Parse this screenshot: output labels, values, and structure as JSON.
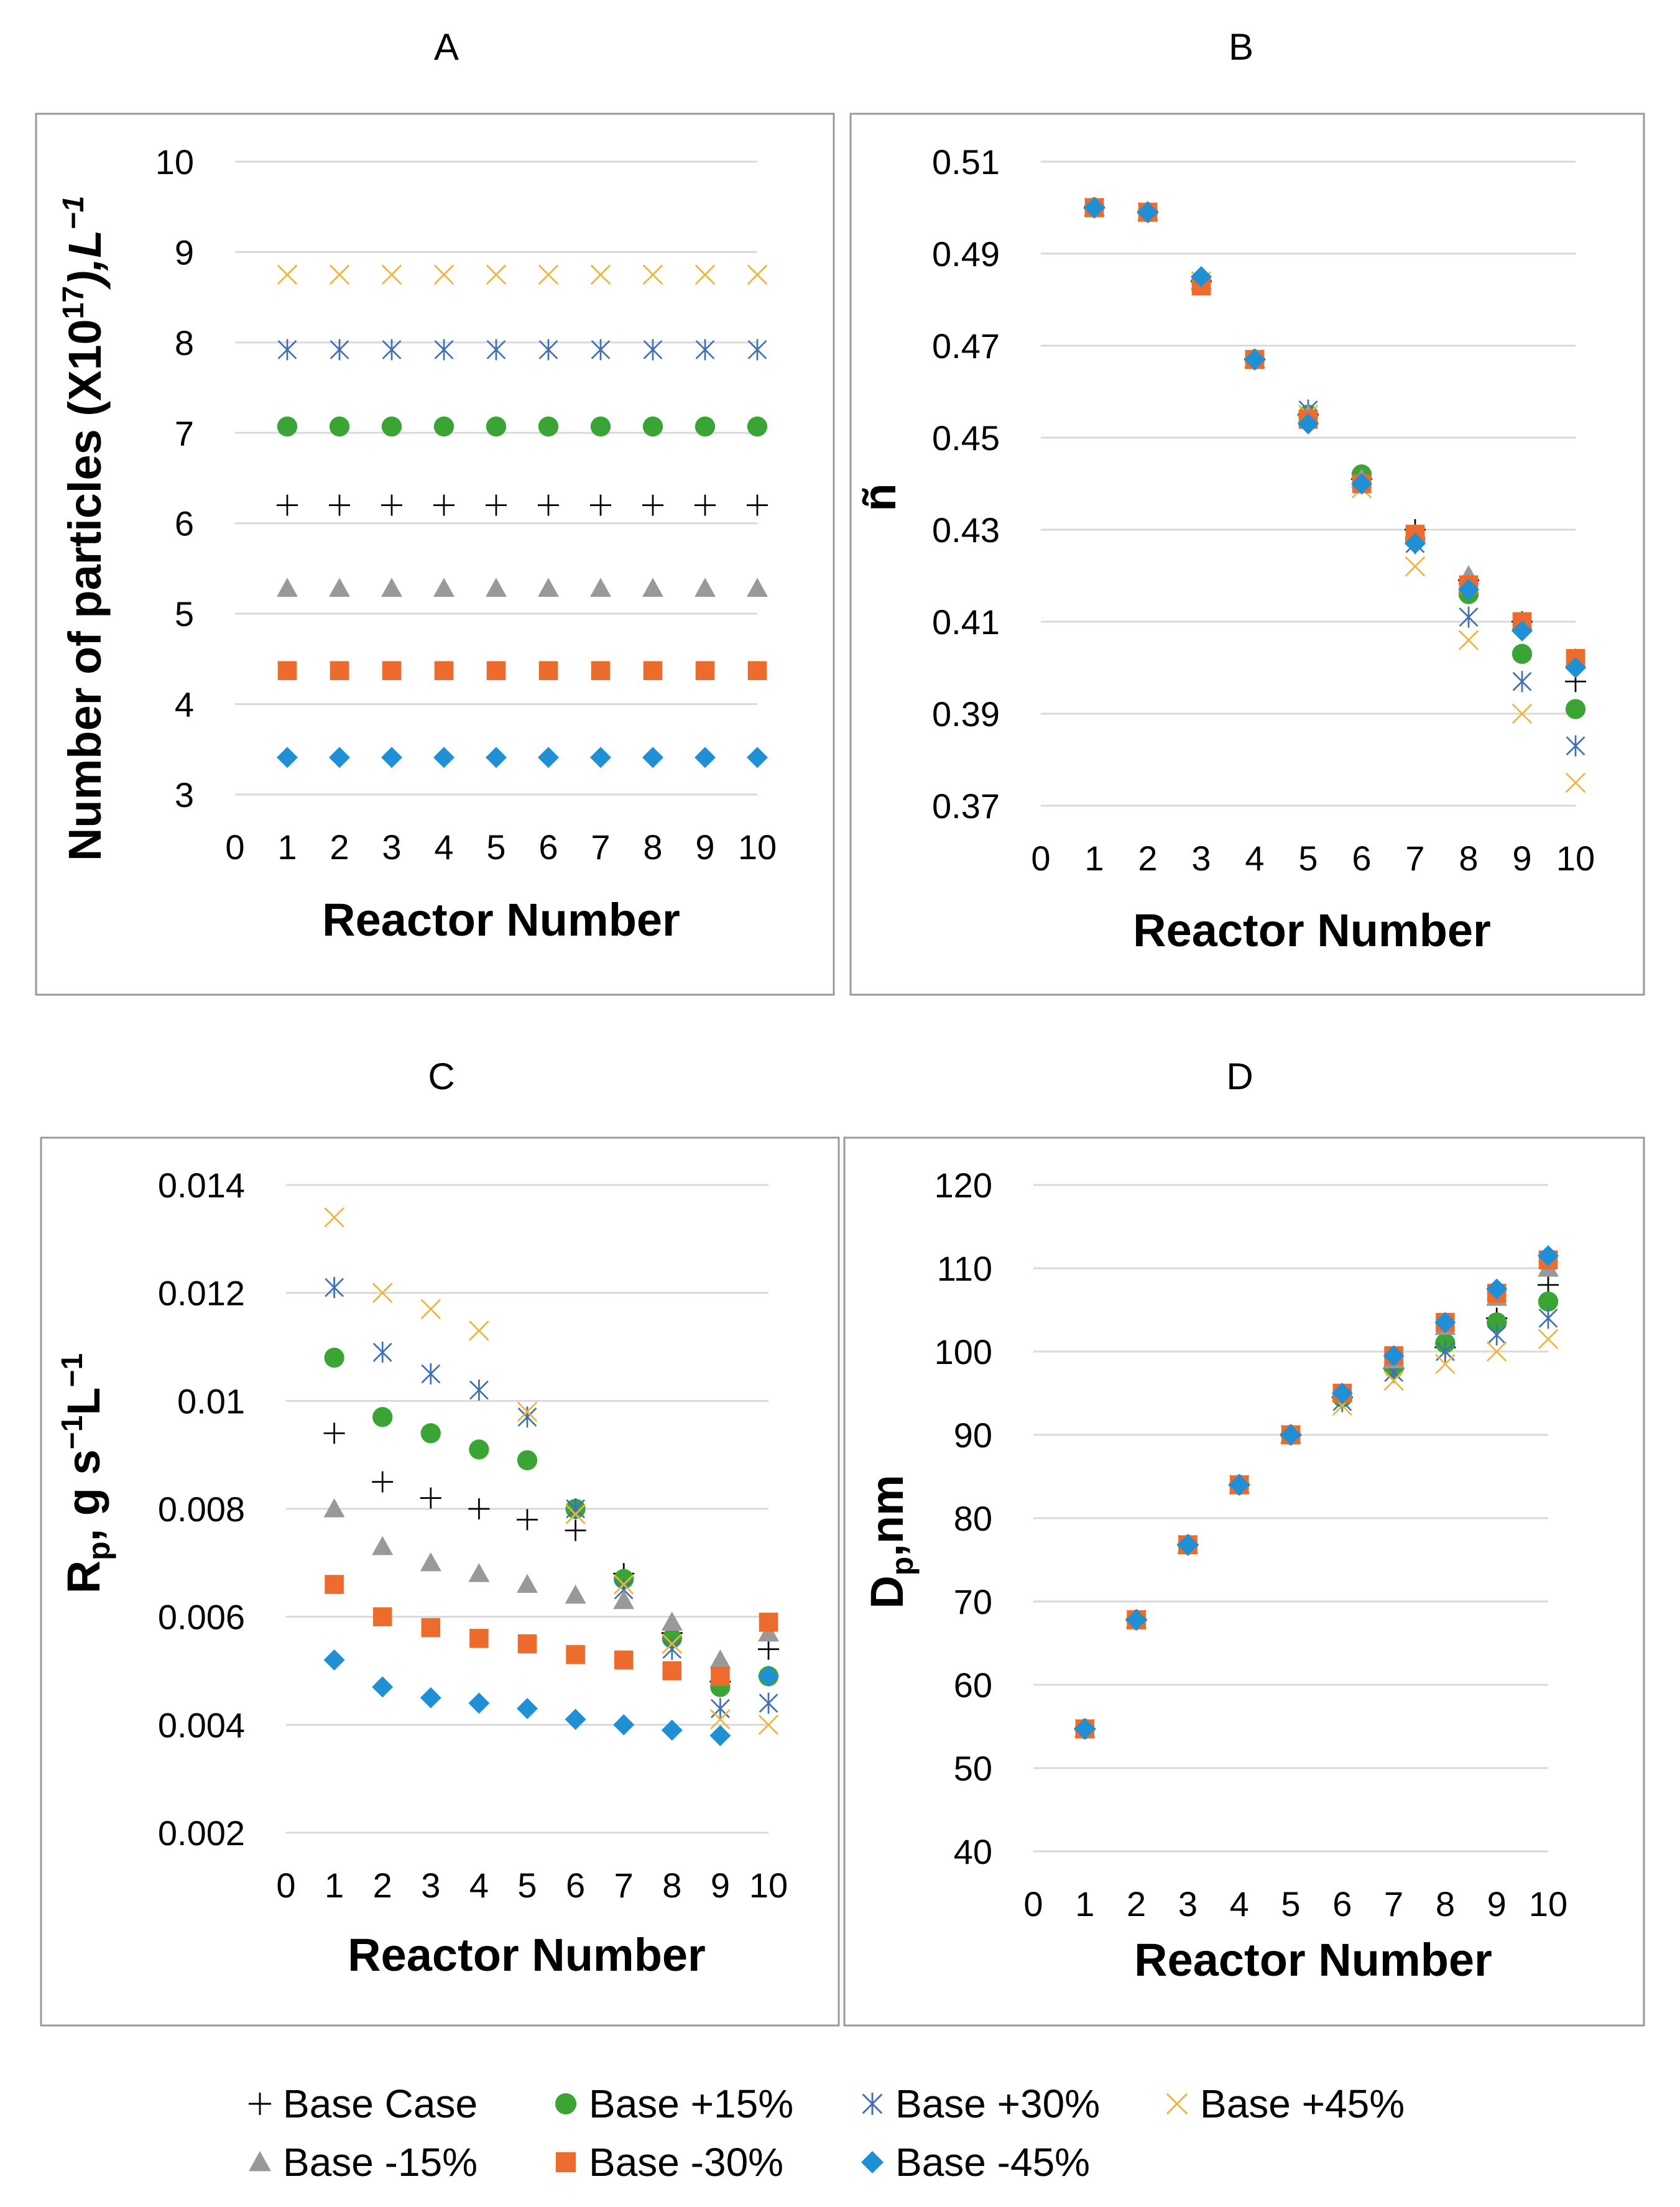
{
  "series_style": [
    {
      "key": "base",
      "marker": "plus",
      "color": "#000000"
    },
    {
      "key": "p15",
      "marker": "circle",
      "color": "#3aa535"
    },
    {
      "key": "p30",
      "marker": "asterisk",
      "color": "#3f6fb5"
    },
    {
      "key": "p45",
      "marker": "x",
      "color": "#f2b33d"
    },
    {
      "key": "m15",
      "marker": "triangle",
      "color": "#999999"
    },
    {
      "key": "m30",
      "marker": "square",
      "color": "#ed6b2d"
    },
    {
      "key": "m45",
      "marker": "diamond",
      "color": "#1f8fd6"
    }
  ],
  "legend": {
    "items": [
      "Base Case",
      "Base +15%",
      "Base +30%",
      "Base +45%",
      "Base -15%",
      "Base -30%",
      "Base -45%"
    ]
  },
  "chart_data": [
    {
      "panel": "A",
      "type": "scatter",
      "title": "A",
      "xlabel": "Reactor Number",
      "ylabel": "Number of particles (X10",
      "ylabel_sup": "17",
      "ylabel_end": "),L",
      "ylabel_end_sup": "−1",
      "xlim": [
        0,
        10
      ],
      "ylim": [
        3,
        10
      ],
      "xticks": [
        "0",
        "1",
        "2",
        "3",
        "4",
        "5",
        "6",
        "7",
        "8",
        "9",
        "10"
      ],
      "yticks": [
        "3",
        "4",
        "5",
        "6",
        "7",
        "8",
        "9",
        "10"
      ],
      "grid": true,
      "x": [
        1,
        2,
        3,
        4,
        5,
        6,
        7,
        8,
        9,
        10
      ],
      "series": [
        {
          "name": "Base Case",
          "values": [
            6.2,
            6.2,
            6.2,
            6.2,
            6.2,
            6.2,
            6.2,
            6.2,
            6.2,
            6.2
          ]
        },
        {
          "name": "Base +15%",
          "values": [
            7.07,
            7.07,
            7.07,
            7.07,
            7.07,
            7.07,
            7.07,
            7.07,
            7.07,
            7.07
          ]
        },
        {
          "name": "Base +30%",
          "values": [
            7.92,
            7.92,
            7.92,
            7.92,
            7.92,
            7.92,
            7.92,
            7.92,
            7.92,
            7.92
          ]
        },
        {
          "name": "Base +45%",
          "values": [
            8.75,
            8.75,
            8.75,
            8.75,
            8.75,
            8.75,
            8.75,
            8.75,
            8.75,
            8.75
          ]
        },
        {
          "name": "Base -15%",
          "values": [
            5.28,
            5.28,
            5.28,
            5.28,
            5.28,
            5.28,
            5.28,
            5.28,
            5.28,
            5.28
          ]
        },
        {
          "name": "Base -30%",
          "values": [
            4.37,
            4.37,
            4.37,
            4.37,
            4.37,
            4.37,
            4.37,
            4.37,
            4.37,
            4.37
          ]
        },
        {
          "name": "Base -45%",
          "values": [
            3.41,
            3.41,
            3.41,
            3.41,
            3.41,
            3.41,
            3.41,
            3.41,
            3.41,
            3.41
          ]
        }
      ]
    },
    {
      "panel": "B",
      "type": "scatter",
      "title": "B",
      "xlabel": "Reactor Number",
      "ylabel": "ñ",
      "xlim": [
        0,
        10
      ],
      "ylim": [
        0.37,
        0.51
      ],
      "xticks": [
        "0",
        "1",
        "2",
        "3",
        "4",
        "5",
        "6",
        "7",
        "8",
        "9",
        "10"
      ],
      "yticks": [
        "0.37",
        "0.39",
        "0.41",
        "0.43",
        "0.45",
        "0.47",
        "0.49",
        "0.51"
      ],
      "grid": true,
      "x": [
        1,
        2,
        3,
        4,
        5,
        6,
        7,
        8,
        9,
        10
      ],
      "series": [
        {
          "name": "Base Case",
          "values": [
            0.5,
            0.499,
            0.484,
            0.467,
            0.455,
            0.441,
            0.43,
            0.419,
            0.41,
            0.397
          ]
        },
        {
          "name": "Base +15%",
          "values": [
            0.5,
            0.499,
            0.484,
            0.467,
            0.455,
            0.442,
            0.428,
            0.416,
            0.403,
            0.391
          ]
        },
        {
          "name": "Base +30%",
          "values": [
            0.5,
            0.499,
            0.484,
            0.467,
            0.456,
            0.44,
            0.427,
            0.411,
            0.397,
            0.383
          ]
        },
        {
          "name": "Base +45%",
          "values": [
            0.5,
            0.499,
            0.484,
            0.467,
            0.455,
            0.439,
            0.422,
            0.406,
            0.39,
            0.375
          ]
        },
        {
          "name": "Base -15%",
          "values": [
            0.5,
            0.499,
            0.484,
            0.467,
            0.455,
            0.441,
            0.429,
            0.42,
            0.41,
            0.402
          ]
        },
        {
          "name": "Base -30%",
          "values": [
            0.5,
            0.499,
            0.483,
            0.467,
            0.454,
            0.44,
            0.429,
            0.418,
            0.41,
            0.402
          ]
        },
        {
          "name": "Base -45%",
          "values": [
            0.5,
            0.499,
            0.485,
            0.467,
            0.453,
            0.44,
            0.427,
            0.417,
            0.408,
            0.4
          ]
        }
      ]
    },
    {
      "panel": "C",
      "type": "scatter",
      "title": "C",
      "xlabel": "Reactor Number",
      "ylabel": "R",
      "ylabel_sub": "p",
      "ylabel_mid": ", g s",
      "ylabel_sup1": "−1",
      "ylabel_mid2": "L",
      "ylabel_sup2": "−1",
      "xlim": [
        0,
        10
      ],
      "ylim": [
        0.002,
        0.014
      ],
      "xticks": [
        "0",
        "1",
        "2",
        "3",
        "4",
        "5",
        "6",
        "7",
        "8",
        "9",
        "10"
      ],
      "yticks": [
        "0.002",
        "0.004",
        "0.006",
        "0.008",
        "0.01",
        "0.012",
        "0.014"
      ],
      "grid": true,
      "x": [
        1,
        2,
        3,
        4,
        5,
        6,
        7,
        8,
        9,
        10
      ],
      "series": [
        {
          "name": "Base Case",
          "values": [
            0.0094,
            0.0085,
            0.0082,
            0.008,
            0.0078,
            0.0076,
            0.0068,
            0.0057,
            0.0048,
            0.0054
          ]
        },
        {
          "name": "Base +15%",
          "values": [
            0.0108,
            0.0097,
            0.0094,
            0.0091,
            0.0089,
            0.008,
            0.0067,
            0.0056,
            0.0047,
            0.0049
          ]
        },
        {
          "name": "Base +30%",
          "values": [
            0.0121,
            0.0109,
            0.0105,
            0.0102,
            0.0097,
            0.008,
            0.0065,
            0.0054,
            0.0043,
            0.0044
          ]
        },
        {
          "name": "Base +45%",
          "values": [
            0.0134,
            0.012,
            0.0117,
            0.0113,
            0.0098,
            0.0079,
            0.0066,
            0.0055,
            0.0041,
            0.004
          ]
        },
        {
          "name": "Base -15%",
          "values": [
            0.008,
            0.0073,
            0.007,
            0.0068,
            0.0066,
            0.0064,
            0.0063,
            0.0059,
            0.0052,
            0.0057
          ]
        },
        {
          "name": "Base -30%",
          "values": [
            0.0066,
            0.006,
            0.0058,
            0.0056,
            0.0055,
            0.0053,
            0.0052,
            0.005,
            0.0049,
            0.0059
          ]
        },
        {
          "name": "Base -45%",
          "values": [
            0.0052,
            0.0047,
            0.0045,
            0.0044,
            0.0043,
            0.0041,
            0.004,
            0.0039,
            0.0038,
            0.0049
          ]
        }
      ]
    },
    {
      "panel": "D",
      "type": "scatter",
      "title": "D",
      "xlabel": "Reactor Number",
      "ylabel": "D",
      "ylabel_sub": "p",
      "ylabel_end": ",nm",
      "xlim": [
        0,
        10
      ],
      "ylim": [
        40,
        120
      ],
      "xticks": [
        "0",
        "1",
        "2",
        "3",
        "4",
        "5",
        "6",
        "7",
        "8",
        "9",
        "10"
      ],
      "yticks": [
        "40",
        "50",
        "60",
        "70",
        "80",
        "90",
        "100",
        "110",
        "120"
      ],
      "grid": true,
      "x": [
        1,
        2,
        3,
        4,
        5,
        6,
        7,
        8,
        9,
        10
      ],
      "series": [
        {
          "name": "Base Case",
          "values": [
            54.7,
            67.8,
            76.8,
            84,
            90,
            94.5,
            98,
            100.5,
            104,
            108
          ]
        },
        {
          "name": "Base +15%",
          "values": [
            54.7,
            67.8,
            76.8,
            84,
            90,
            94.5,
            98,
            101,
            103.5,
            106
          ]
        },
        {
          "name": "Base +30%",
          "values": [
            54.7,
            67.8,
            76.8,
            84,
            90,
            94,
            97.5,
            100,
            102,
            104
          ]
        },
        {
          "name": "Base +45%",
          "values": [
            54.7,
            67.8,
            76.8,
            84,
            90,
            93.5,
            96.5,
            98.5,
            100,
            101.5
          ]
        },
        {
          "name": "Base -15%",
          "values": [
            54.7,
            67.8,
            76.8,
            84,
            90,
            95,
            99,
            103,
            106.5,
            110
          ]
        },
        {
          "name": "Base -30%",
          "values": [
            54.7,
            67.8,
            76.8,
            84,
            90,
            95,
            99.5,
            103.5,
            107,
            111
          ]
        },
        {
          "name": "Base -45%",
          "values": [
            54.7,
            67.8,
            76.8,
            84,
            90,
            95,
            99.5,
            103.5,
            107.5,
            111.5
          ]
        }
      ]
    }
  ]
}
